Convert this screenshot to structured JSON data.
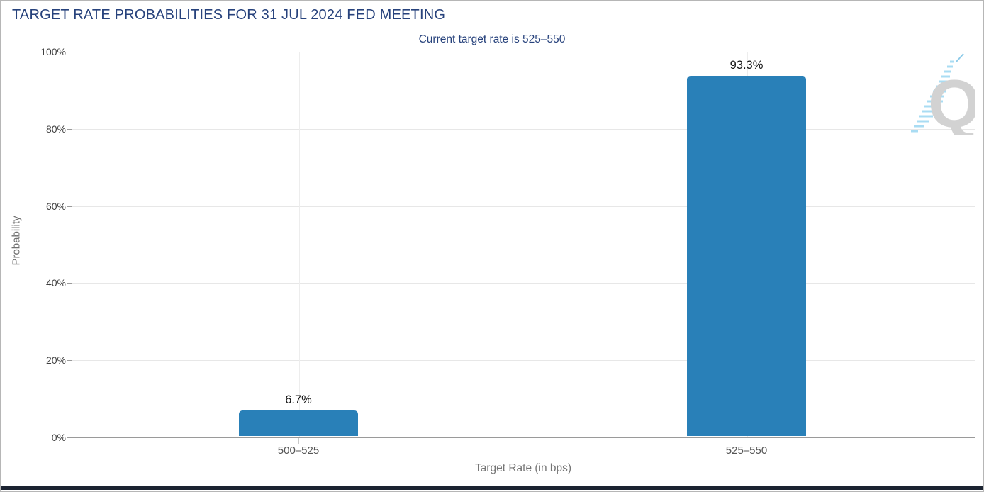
{
  "header": {
    "title": "TARGET RATE PROBABILITIES FOR 31 JUL 2024 FED MEETING",
    "subtitle": "Current target rate is 525–550"
  },
  "chart_data": {
    "type": "bar",
    "title": "TARGET RATE PROBABILITIES FOR 31 JUL 2024 FED MEETING",
    "subtitle": "Current target rate is 525–550",
    "categories": [
      "500–525",
      "525–550"
    ],
    "values": [
      6.7,
      93.3
    ],
    "value_labels": [
      "6.7%",
      "93.3%"
    ],
    "xlabel": "Target Rate (in bps)",
    "ylabel": "Probability",
    "ylim": [
      0,
      100
    ],
    "yticks": [
      "0%",
      "20%",
      "40%",
      "60%",
      "80%",
      "100%"
    ],
    "grid": true,
    "legend_position": "none",
    "bar_color": "#2980b8"
  },
  "watermark": {
    "letter": "Q"
  },
  "colors": {
    "title_text": "#27427c",
    "bar": "#2980b8",
    "axis_title_text": "#6f6f6f",
    "tick_label_text": "#3f3f3f",
    "gridline": "#e7e7e7",
    "bottom_bar": "#1b2331"
  }
}
